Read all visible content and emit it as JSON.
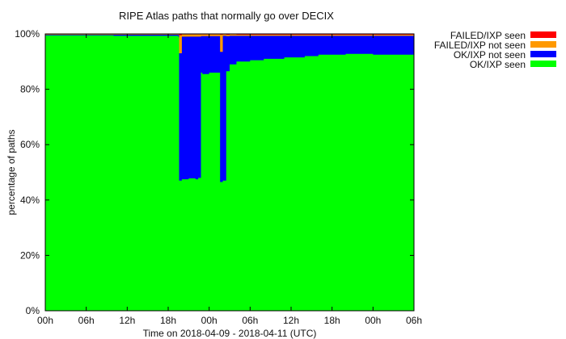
{
  "chart_data": {
    "type": "area",
    "title": "RIPE Atlas paths that normally go over DECIX",
    "xlabel": "Time on 2018-04-09 - 2018-04-11 (UTC)",
    "ylabel": "percentage of paths",
    "x_ticks": [
      "00h",
      "06h",
      "12h",
      "18h",
      "00h",
      "06h",
      "12h",
      "18h",
      "00h",
      "06h"
    ],
    "x_tick_hours": [
      0,
      6,
      12,
      18,
      24,
      30,
      36,
      42,
      48,
      54
    ],
    "xlim_hours": [
      0,
      54
    ],
    "y_ticks": [
      "0%",
      "20%",
      "40%",
      "60%",
      "80%",
      "100%"
    ],
    "y_tick_values": [
      0,
      20,
      40,
      60,
      80,
      100
    ],
    "ylim": [
      0,
      100
    ],
    "stack_order": [
      "OK/IXP seen",
      "OK/IXP not seen",
      "FAILED/IXP not seen",
      "FAILED/IXP seen"
    ],
    "legend": {
      "placement": "right",
      "entries": [
        {
          "label": "FAILED/IXP seen",
          "color": "#ff0000"
        },
        {
          "label": "FAILED/IXP not seen",
          "color": "#ff9900"
        },
        {
          "label": "OK/IXP not seen",
          "color": "#0000ff"
        },
        {
          "label": "OK/IXP seen",
          "color": "#00ff00"
        }
      ]
    },
    "series": [
      {
        "name": "OK/IXP seen",
        "color": "#00ff00",
        "x": [
          0,
          10,
          19.5,
          19.6,
          20,
          21,
          22,
          22.4,
          22.8,
          23,
          24,
          25.5,
          25.6,
          26,
          26.5,
          27,
          28,
          29,
          30,
          32,
          35,
          38,
          40,
          44,
          48,
          50,
          52,
          53.5
        ],
        "values": [
          99.5,
          99.3,
          98.8,
          47,
          47.5,
          47.8,
          47.5,
          48,
          86,
          85.5,
          86,
          86,
          46.5,
          47,
          86.5,
          89,
          90,
          90,
          90.5,
          91,
          91.5,
          92,
          92.5,
          92.8,
          92.5,
          92.5,
          92.5,
          92.5
        ]
      },
      {
        "name": "OK/IXP not seen",
        "color": "#0000ff",
        "x": [
          0,
          10,
          19.5,
          19.6,
          20,
          21,
          22,
          22.4,
          22.8,
          23,
          24,
          25.5,
          25.6,
          26,
          26.5,
          27,
          28,
          29,
          30,
          32,
          35,
          38,
          40,
          44,
          48,
          50,
          52,
          53.5
        ],
        "values": [
          0.2,
          0.4,
          0.8,
          46,
          51.5,
          51.2,
          51.5,
          51,
          13.2,
          13.7,
          13.2,
          13.2,
          47,
          52.3,
          12.7,
          10.3,
          9.3,
          9.3,
          8.8,
          8.3,
          7.8,
          7.3,
          6.8,
          6.5,
          6.8,
          6.8,
          6.8,
          6.8
        ]
      },
      {
        "name": "FAILED/IXP not seen",
        "color": "#ff9900",
        "x": [
          0,
          10,
          19.5,
          19.6,
          20,
          21,
          22,
          22.4,
          22.8,
          23,
          24,
          25.5,
          25.6,
          26,
          26.5,
          27,
          28,
          29,
          30,
          32,
          35,
          38,
          40,
          44,
          48,
          50,
          52,
          53.5
        ],
        "values": [
          0.2,
          0.2,
          0.3,
          6.5,
          0.8,
          0.8,
          0.8,
          0.8,
          0.6,
          0.6,
          0.6,
          0.6,
          6.2,
          0.5,
          0.5,
          0.5,
          0.4,
          0.4,
          0.4,
          0.4,
          0.4,
          0.4,
          0.4,
          0.4,
          0.4,
          0.4,
          0.4,
          0.4
        ]
      },
      {
        "name": "FAILED/IXP seen",
        "color": "#ff0000",
        "x": [
          0,
          10,
          19.5,
          19.6,
          20,
          21,
          22,
          22.4,
          22.8,
          23,
          24,
          25.5,
          25.6,
          26,
          26.5,
          27,
          28,
          29,
          30,
          32,
          35,
          38,
          40,
          44,
          48,
          50,
          52,
          53.5
        ],
        "values": [
          0.1,
          0.1,
          0.1,
          0.5,
          0.2,
          0.2,
          0.2,
          0.2,
          0.2,
          0.2,
          0.2,
          0.2,
          0.3,
          0.2,
          0.3,
          0.2,
          0.3,
          0.3,
          0.3,
          0.3,
          0.3,
          0.3,
          0.3,
          0.3,
          0.3,
          0.3,
          0.3,
          0.3
        ]
      }
    ],
    "grid": false
  }
}
